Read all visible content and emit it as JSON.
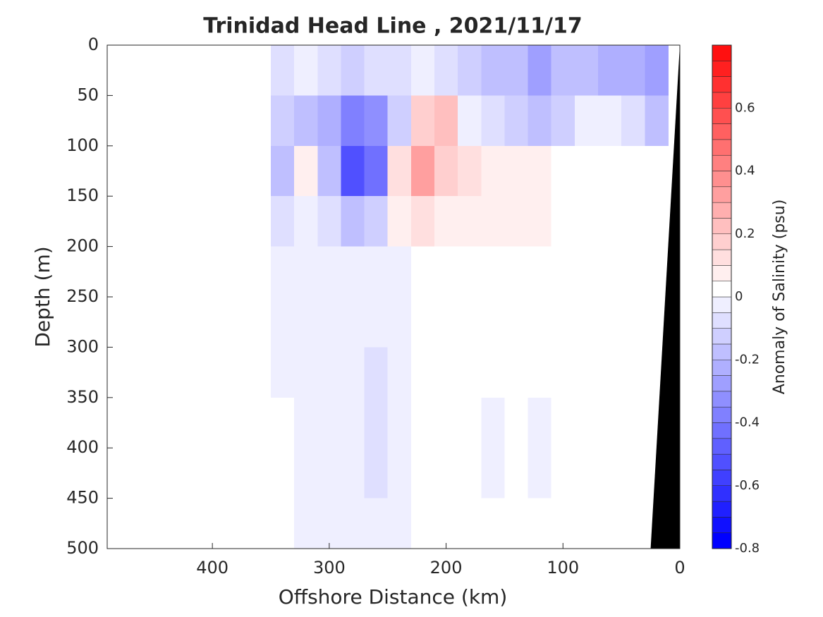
{
  "chart_data": {
    "type": "contourf",
    "title": "Trinidad Head Line , 2021/11/17",
    "xlabel": "Offshore Distance (km)",
    "ylabel": "Depth (m)",
    "colorbar_label": "Anomaly of Salinity (psu)",
    "xlim": [
      490,
      0
    ],
    "xticks": [
      400,
      300,
      200,
      100,
      0
    ],
    "ylim": [
      0,
      500
    ],
    "yticks": [
      0,
      50,
      100,
      150,
      200,
      250,
      300,
      350,
      400,
      450,
      500
    ],
    "clim": [
      -0.8,
      0.8
    ],
    "cticks": [
      -0.8,
      -0.6,
      -0.4,
      -0.2,
      0,
      0.2,
      0.4,
      0.6
    ],
    "x": [
      340,
      320,
      300,
      280,
      260,
      240,
      220,
      200,
      180,
      160,
      140,
      120,
      100,
      80,
      60,
      40,
      20
    ],
    "depth": [
      25,
      75,
      125,
      175,
      225,
      275,
      325,
      375,
      425,
      475
    ],
    "z": [
      [
        -0.1,
        -0.05,
        -0.1,
        -0.15,
        -0.1,
        -0.1,
        -0.05,
        -0.1,
        -0.15,
        -0.2,
        -0.2,
        -0.3,
        -0.2,
        -0.2,
        -0.25,
        -0.25,
        -0.3
      ],
      [
        -0.15,
        -0.2,
        -0.25,
        -0.4,
        -0.35,
        -0.15,
        0.15,
        0.2,
        -0.05,
        -0.1,
        -0.15,
        -0.2,
        -0.15,
        -0.05,
        -0.05,
        -0.1,
        -0.2
      ],
      [
        -0.2,
        0.05,
        -0.2,
        -0.55,
        -0.45,
        0.1,
        0.3,
        0.15,
        0.1,
        0.05,
        0.05,
        0.05,
        0,
        0,
        0,
        0,
        0
      ],
      [
        -0.1,
        -0.05,
        -0.1,
        -0.2,
        -0.15,
        0.05,
        0.1,
        0.05,
        0.05,
        0.05,
        0.05,
        0.05,
        0,
        0,
        0,
        0,
        0
      ],
      [
        -0.05,
        -0.05,
        -0.05,
        -0.05,
        -0.05,
        -0.05,
        0,
        0,
        0,
        0,
        0,
        0,
        0,
        0,
        0,
        0,
        0
      ],
      [
        -0.05,
        -0.05,
        -0.05,
        -0.05,
        -0.05,
        -0.05,
        0,
        0,
        0,
        0,
        0,
        0,
        0,
        0,
        0,
        0,
        0
      ],
      [
        -0.05,
        -0.05,
        -0.05,
        -0.05,
        -0.1,
        -0.05,
        0,
        0,
        0,
        0,
        0,
        0,
        0,
        0,
        0,
        0,
        0
      ],
      [
        0,
        -0.05,
        -0.05,
        -0.05,
        -0.1,
        -0.05,
        0,
        0,
        0,
        -0.05,
        0,
        -0.05,
        0,
        0,
        0,
        0,
        0
      ],
      [
        0,
        -0.05,
        -0.05,
        -0.05,
        -0.1,
        -0.05,
        0,
        0,
        0,
        -0.05,
        0,
        -0.05,
        0,
        0,
        0,
        0,
        0
      ],
      [
        0,
        -0.05,
        -0.05,
        -0.05,
        -0.05,
        -0.05,
        0,
        0,
        0,
        0,
        0,
        0,
        0,
        0,
        0,
        0,
        0
      ]
    ],
    "bathymetry": {
      "x": [
        0,
        0,
        25
      ],
      "depth": [
        0,
        500,
        500
      ]
    }
  }
}
